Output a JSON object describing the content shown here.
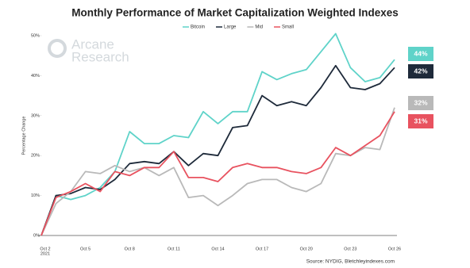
{
  "chart_data": {
    "type": "line",
    "title": "Monthly Performance of Market Capitalization Weighted Indexes",
    "y_label": "Percentage Change",
    "source": "Source: NYDIG, Bletchleyindexes.com",
    "watermark": [
      "Arcane",
      "Research"
    ],
    "x_year_label": "2021",
    "categories": [
      "Oct 2",
      null,
      null,
      "Oct 5",
      null,
      null,
      "Oct 8",
      null,
      null,
      "Oct 11",
      null,
      null,
      "Oct 14",
      null,
      null,
      "Oct 17",
      null,
      null,
      "Oct 20",
      null,
      null,
      "Oct 23",
      null,
      null,
      "Oct 26"
    ],
    "ylim": [
      0,
      50
    ],
    "yticks": [
      {
        "value": 0,
        "label": "0%"
      },
      {
        "value": 10,
        "label": "10%"
      },
      {
        "value": 20,
        "label": "20%"
      },
      {
        "value": 30,
        "label": "30%"
      },
      {
        "value": 40,
        "label": "40%"
      },
      {
        "value": 50,
        "label": "50%"
      }
    ],
    "series": [
      {
        "name": "Bitcoin",
        "color": "#5fd3c9",
        "end_label": "44%",
        "values": [
          0,
          10,
          9,
          10,
          12,
          16,
          26,
          23,
          23,
          25,
          24.5,
          31,
          28,
          31,
          31,
          41,
          39,
          40.5,
          41.5,
          46,
          50.5,
          42,
          38.5,
          39.5,
          44
        ]
      },
      {
        "name": "Large",
        "color": "#1e2a3a",
        "end_label": "42%",
        "values": [
          0,
          10,
          10.5,
          12,
          11.5,
          14,
          18,
          18.5,
          18,
          21,
          17.5,
          20.5,
          20,
          27,
          27.5,
          35,
          32.5,
          33.5,
          32.5,
          37,
          42.5,
          37,
          36.5,
          38,
          42
        ]
      },
      {
        "name": "Mid",
        "color": "#b9b9b9",
        "end_label": "32%",
        "values": [
          0,
          8,
          11,
          16,
          15.5,
          17.5,
          16,
          17,
          15,
          17,
          9.5,
          10,
          7.5,
          10,
          13,
          14,
          14,
          12,
          11,
          13,
          20.5,
          20,
          22,
          21.5,
          32
        ]
      },
      {
        "name": "Small",
        "color": "#e8525f",
        "end_label": "31%",
        "values": [
          0,
          9.5,
          11,
          13,
          11,
          16,
          15,
          17,
          17,
          21,
          14.5,
          14.5,
          13.5,
          17,
          18,
          17,
          17,
          16,
          15.5,
          17,
          22,
          20,
          22.5,
          25,
          31
        ]
      }
    ]
  }
}
